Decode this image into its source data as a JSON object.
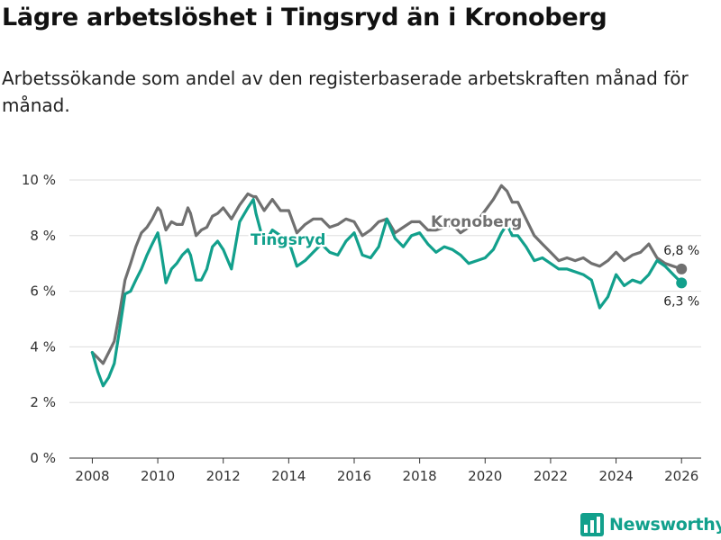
{
  "title": "Lägre arbetslöshet i Tingsryd än i Kronoberg",
  "subtitle": "Arbetssökande som andel av den registerbaserade arbetskraften månad för månad.",
  "brand": {
    "name": "Newsworthy",
    "color": "#12a08c"
  },
  "chart_data": {
    "type": "line",
    "title": "Lägre arbetslöshet i Tingsryd än i Kronoberg",
    "ylabel": "",
    "xlabel": "",
    "ylim": [
      0,
      10
    ],
    "xlim": [
      2007.3,
      2026.6
    ],
    "y_ticks": [
      {
        "value": 0,
        "label": "0 %"
      },
      {
        "value": 2,
        "label": "2 %"
      },
      {
        "value": 4,
        "label": "4 %"
      },
      {
        "value": 6,
        "label": "6 %"
      },
      {
        "value": 8,
        "label": "8 %"
      },
      {
        "value": 10,
        "label": "10 %"
      }
    ],
    "x_ticks": [
      {
        "value": 2008,
        "label": "2008"
      },
      {
        "value": 2010,
        "label": "2010"
      },
      {
        "value": 2012,
        "label": "2012"
      },
      {
        "value": 2014,
        "label": "2014"
      },
      {
        "value": 2016,
        "label": "2016"
      },
      {
        "value": 2018,
        "label": "2018"
      },
      {
        "value": 2020,
        "label": "2020"
      },
      {
        "value": 2022,
        "label": "2022"
      },
      {
        "value": 2024,
        "label": "2024"
      },
      {
        "value": 2026,
        "label": "2026"
      }
    ],
    "grid": true,
    "series": [
      {
        "name": "Kronoberg",
        "color": "#707070",
        "end_label": "6,8 %",
        "x": [
          2008.0,
          2008.17,
          2008.33,
          2008.5,
          2008.67,
          2008.83,
          2009.0,
          2009.17,
          2009.33,
          2009.5,
          2009.67,
          2009.83,
          2010.0,
          2010.08,
          2010.25,
          2010.42,
          2010.58,
          2010.75,
          2010.92,
          2011.0,
          2011.17,
          2011.33,
          2011.5,
          2011.67,
          2011.83,
          2012.0,
          2012.25,
          2012.5,
          2012.75,
          2012.92,
          2013.0,
          2013.25,
          2013.5,
          2013.75,
          2014.0,
          2014.25,
          2014.5,
          2014.75,
          2015.0,
          2015.25,
          2015.5,
          2015.75,
          2016.0,
          2016.25,
          2016.5,
          2016.75,
          2017.0,
          2017.25,
          2017.5,
          2017.75,
          2018.0,
          2018.25,
          2018.5,
          2018.75,
          2019.0,
          2019.25,
          2019.5,
          2019.75,
          2020.0,
          2020.25,
          2020.5,
          2020.67,
          2020.83,
          2021.0,
          2021.25,
          2021.5,
          2021.75,
          2022.0,
          2022.25,
          2022.5,
          2022.75,
          2023.0,
          2023.25,
          2023.5,
          2023.75,
          2024.0,
          2024.25,
          2024.5,
          2024.75,
          2025.0,
          2025.25,
          2025.5,
          2025.75,
          2026.0
        ],
        "values": [
          3.8,
          3.6,
          3.4,
          3.8,
          4.2,
          5.2,
          6.4,
          7.0,
          7.6,
          8.1,
          8.3,
          8.6,
          9.0,
          8.9,
          8.2,
          8.5,
          8.4,
          8.4,
          9.0,
          8.8,
          8.0,
          8.2,
          8.3,
          8.7,
          8.8,
          9.0,
          8.6,
          9.1,
          9.5,
          9.4,
          9.4,
          8.9,
          9.3,
          8.9,
          8.9,
          8.1,
          8.4,
          8.6,
          8.6,
          8.3,
          8.4,
          8.6,
          8.5,
          8.0,
          8.2,
          8.5,
          8.6,
          8.1,
          8.3,
          8.5,
          8.5,
          8.2,
          8.2,
          8.3,
          8.4,
          8.1,
          8.3,
          8.5,
          8.9,
          9.3,
          9.8,
          9.6,
          9.2,
          9.2,
          8.6,
          8.0,
          7.7,
          7.4,
          7.1,
          7.2,
          7.1,
          7.2,
          7.0,
          6.9,
          7.1,
          7.4,
          7.1,
          7.3,
          7.4,
          7.7,
          7.2,
          7.0,
          6.9,
          6.8
        ]
      },
      {
        "name": "Tingsryd",
        "color": "#12a08c",
        "end_label": "6,3 %",
        "x": [
          2008.0,
          2008.17,
          2008.33,
          2008.5,
          2008.67,
          2008.83,
          2009.0,
          2009.17,
          2009.33,
          2009.5,
          2009.67,
          2009.83,
          2010.0,
          2010.08,
          2010.25,
          2010.42,
          2010.58,
          2010.75,
          2010.92,
          2011.0,
          2011.17,
          2011.33,
          2011.5,
          2011.67,
          2011.83,
          2012.0,
          2012.25,
          2012.5,
          2012.75,
          2012.92,
          2013.0,
          2013.25,
          2013.5,
          2013.75,
          2014.0,
          2014.25,
          2014.5,
          2014.75,
          2015.0,
          2015.25,
          2015.5,
          2015.75,
          2016.0,
          2016.25,
          2016.5,
          2016.75,
          2017.0,
          2017.25,
          2017.5,
          2017.75,
          2018.0,
          2018.25,
          2018.5,
          2018.75,
          2019.0,
          2019.25,
          2019.5,
          2019.75,
          2020.0,
          2020.25,
          2020.5,
          2020.67,
          2020.83,
          2021.0,
          2021.25,
          2021.5,
          2021.75,
          2022.0,
          2022.25,
          2022.5,
          2022.75,
          2023.0,
          2023.25,
          2023.5,
          2023.75,
          2024.0,
          2024.25,
          2024.5,
          2024.75,
          2025.0,
          2025.25,
          2025.5,
          2025.75,
          2026.0
        ],
        "values": [
          3.8,
          3.1,
          2.6,
          2.9,
          3.4,
          4.6,
          5.9,
          6.0,
          6.4,
          6.8,
          7.3,
          7.7,
          8.1,
          7.6,
          6.3,
          6.8,
          7.0,
          7.3,
          7.5,
          7.3,
          6.4,
          6.4,
          6.8,
          7.6,
          7.8,
          7.5,
          6.8,
          8.5,
          9.0,
          9.3,
          8.8,
          7.7,
          8.2,
          8.0,
          7.8,
          6.9,
          7.1,
          7.4,
          7.7,
          7.4,
          7.3,
          7.8,
          8.1,
          7.3,
          7.2,
          7.6,
          8.6,
          7.9,
          7.6,
          8.0,
          8.1,
          7.7,
          7.4,
          7.6,
          7.5,
          7.3,
          7.0,
          7.1,
          7.2,
          7.5,
          8.1,
          8.4,
          8.0,
          8.0,
          7.6,
          7.1,
          7.2,
          7.0,
          6.8,
          6.8,
          6.7,
          6.6,
          6.4,
          5.4,
          5.8,
          6.6,
          6.2,
          6.4,
          6.3,
          6.6,
          7.1,
          6.9,
          6.6,
          6.3
        ]
      }
    ]
  }
}
